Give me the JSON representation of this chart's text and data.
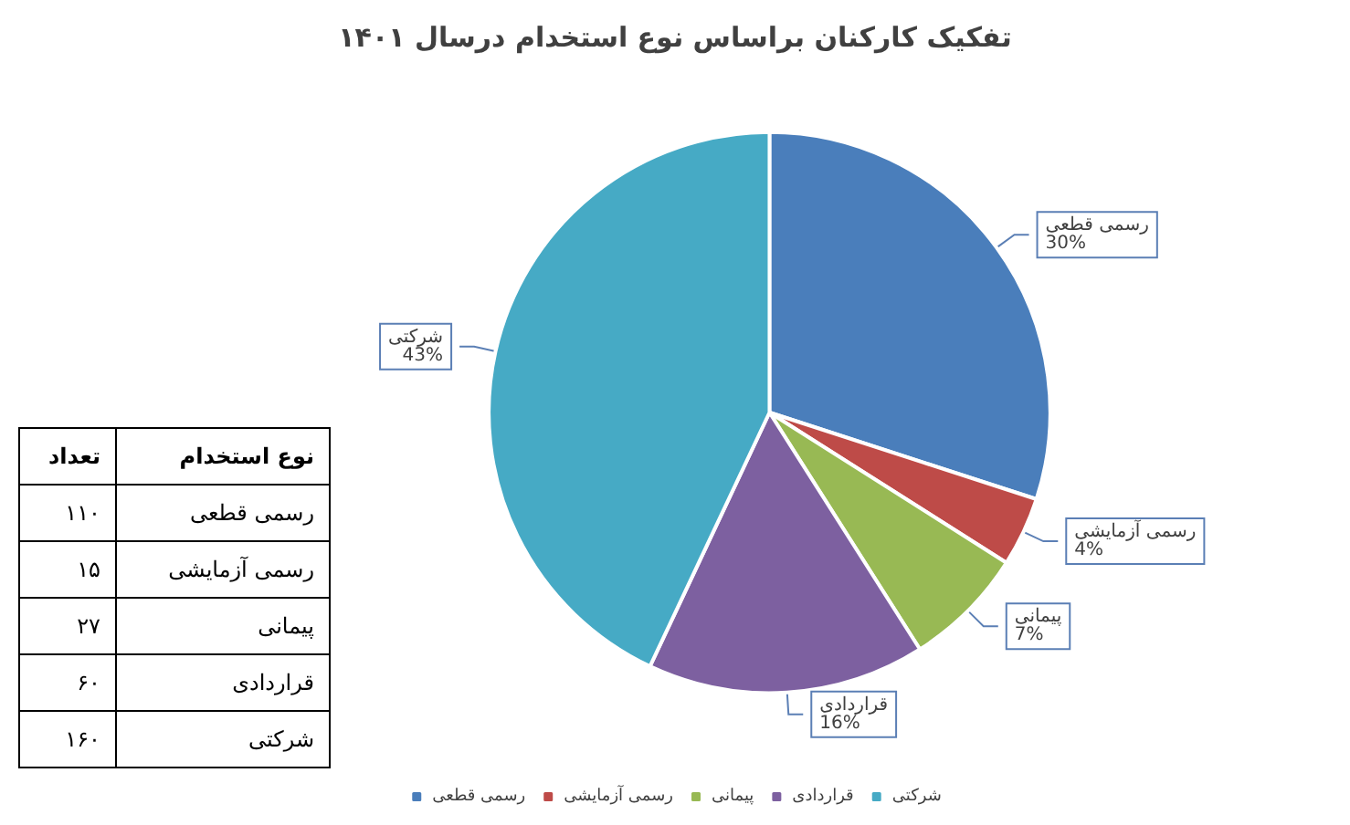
{
  "chart_data": {
    "type": "pie",
    "title": "تفکیک کارکنان براساس نوع استخدام درسال ۱۴۰۱",
    "categories": [
      "رسمی قطعی",
      "رسمی آزمایشی",
      "پیمانی",
      "قراردادی",
      "شرکتی"
    ],
    "values": [
      30,
      4,
      7,
      16,
      43
    ],
    "value_labels": [
      "30%",
      "4%",
      "7%",
      "16%",
      "43%"
    ],
    "colors": [
      "#4a7ebb",
      "#be4b48",
      "#98b954",
      "#7d60a0",
      "#46aac5"
    ],
    "annotations": [
      "نوع استخدام",
      "تعداد",
      "۱۱۰",
      "۱۵",
      "۲۷",
      "۶۰",
      "۱۶۰"
    ],
    "legend": "bottom"
  }
}
